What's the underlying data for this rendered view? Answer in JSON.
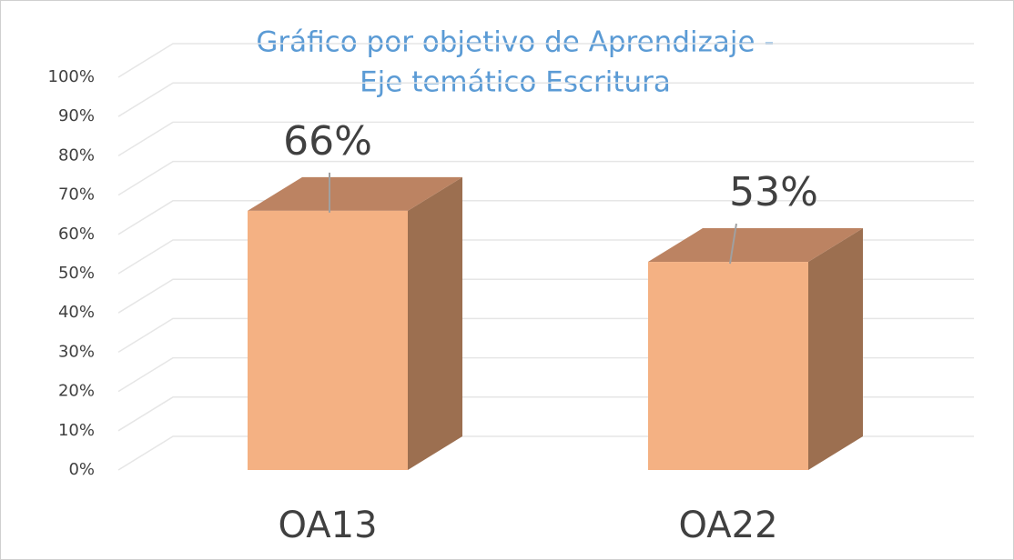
{
  "chart_data": {
    "type": "bar3d",
    "title": [
      "Gráfico por objetivo de Aprendizaje -",
      "Eje temático Escritura"
    ],
    "categories": [
      "OA13",
      "OA22"
    ],
    "values": [
      66,
      53
    ],
    "value_labels": [
      "66%",
      "53%"
    ],
    "color": "#f4b183",
    "ylim": [
      0,
      100
    ],
    "yticks": [
      {
        "value": 0,
        "label": "0%"
      },
      {
        "value": 10,
        "label": "10%"
      },
      {
        "value": 20,
        "label": "20%"
      },
      {
        "value": 30,
        "label": "30%"
      },
      {
        "value": 40,
        "label": "40%"
      },
      {
        "value": 50,
        "label": "50%"
      },
      {
        "value": 60,
        "label": "60%"
      },
      {
        "value": 70,
        "label": "70%"
      },
      {
        "value": 80,
        "label": "80%"
      },
      {
        "value": 90,
        "label": "90%"
      },
      {
        "value": 100,
        "label": "100%"
      }
    ],
    "grid": true
  }
}
